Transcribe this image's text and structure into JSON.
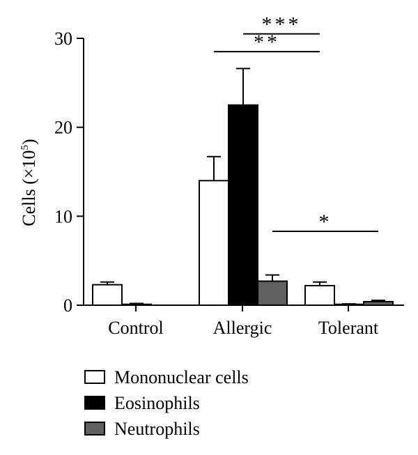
{
  "chart_data": {
    "type": "bar",
    "title": "",
    "xlabel": "",
    "ylabel": "Cells (×10",
    "ylabel_sup": "5",
    "ylabel_close": ")",
    "ylim": [
      0,
      30
    ],
    "yticks": [
      "0",
      "10",
      "20",
      "30"
    ],
    "categories": [
      "Control",
      "Allergic",
      "Tolerant"
    ],
    "series": [
      {
        "name": "Mononuclear cells",
        "color": "#ffffff",
        "values": [
          2.3,
          14.0,
          2.2
        ],
        "errors": [
          0.3,
          2.7,
          0.4
        ]
      },
      {
        "name": "Eosinophils",
        "color": "#000000",
        "values": [
          0.1,
          22.5,
          0.1
        ],
        "errors": [
          0.1,
          4.1,
          0.05
        ]
      },
      {
        "name": "Neutrophils",
        "color": "#5f5f5f",
        "values": [
          0.0,
          2.7,
          0.4
        ],
        "errors": [
          0.0,
          0.7,
          0.15
        ]
      }
    ],
    "grid": false,
    "legend_position": "bottom-left",
    "significance": [
      {
        "label": "***",
        "from_category": 1,
        "from_series": 1,
        "to_category": 2,
        "to_series": 0,
        "level": 30.5
      },
      {
        "label": "**",
        "from_category": 1,
        "from_series": 0,
        "to_category": 2,
        "to_series": 0,
        "level": 28.5
      },
      {
        "label": "*",
        "from_category": 1,
        "from_series": 2,
        "to_category": 2,
        "to_series": 2,
        "level": 8.3
      }
    ]
  }
}
